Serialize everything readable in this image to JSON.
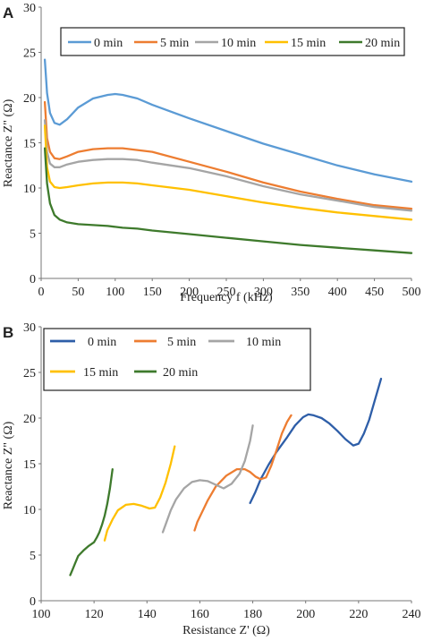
{
  "chart_data": [
    {
      "panel_label": "A",
      "type": "line",
      "xlabel": "Frequency f (kHz)",
      "ylabel": "Reactance Z\" (Ω)",
      "xlim": [
        0,
        500
      ],
      "ylim": [
        0,
        30
      ],
      "xticks": [
        0,
        50,
        100,
        150,
        200,
        250,
        300,
        350,
        400,
        450,
        500
      ],
      "yticks": [
        0,
        5,
        10,
        15,
        20,
        25,
        30
      ],
      "grid": false,
      "legend_position": "top",
      "series": [
        {
          "name": "0 min",
          "color": "#5b9bd5",
          "x": [
            5,
            8,
            12,
            18,
            25,
            35,
            50,
            70,
            90,
            100,
            110,
            130,
            150,
            200,
            250,
            300,
            350,
            400,
            450,
            500
          ],
          "y": [
            24.2,
            20.5,
            18.3,
            17.2,
            17.0,
            17.6,
            18.9,
            19.9,
            20.3,
            20.4,
            20.3,
            19.9,
            19.2,
            17.7,
            16.3,
            14.9,
            13.7,
            12.5,
            11.5,
            10.7
          ]
        },
        {
          "name": "5 min",
          "color": "#ed7d31",
          "x": [
            5,
            8,
            12,
            18,
            25,
            35,
            50,
            70,
            90,
            100,
            110,
            130,
            150,
            200,
            250,
            300,
            350,
            400,
            450,
            500
          ],
          "y": [
            19.5,
            15.5,
            14.0,
            13.3,
            13.2,
            13.5,
            14.0,
            14.3,
            14.4,
            14.4,
            14.4,
            14.2,
            14.0,
            12.9,
            11.8,
            10.6,
            9.6,
            8.8,
            8.1,
            7.7
          ]
        },
        {
          "name": "10 min",
          "color": "#a5a5a5",
          "x": [
            5,
            8,
            12,
            18,
            25,
            35,
            50,
            70,
            90,
            100,
            110,
            130,
            150,
            200,
            250,
            300,
            350,
            400,
            450,
            500
          ],
          "y": [
            17.5,
            14.0,
            12.7,
            12.3,
            12.3,
            12.6,
            12.9,
            13.1,
            13.2,
            13.2,
            13.2,
            13.1,
            12.8,
            12.2,
            11.3,
            10.2,
            9.3,
            8.6,
            7.9,
            7.5
          ]
        },
        {
          "name": "15 min",
          "color": "#ffc000",
          "x": [
            5,
            8,
            12,
            18,
            25,
            35,
            50,
            70,
            90,
            100,
            110,
            130,
            150,
            200,
            250,
            300,
            350,
            400,
            450,
            500
          ],
          "y": [
            16.9,
            12.3,
            10.7,
            10.1,
            10.0,
            10.1,
            10.3,
            10.5,
            10.6,
            10.6,
            10.6,
            10.5,
            10.3,
            9.8,
            9.1,
            8.4,
            7.8,
            7.3,
            6.9,
            6.5
          ]
        },
        {
          "name": "20 min",
          "color": "#3e7a2c",
          "x": [
            5,
            8,
            12,
            18,
            25,
            35,
            50,
            70,
            90,
            100,
            110,
            130,
            150,
            200,
            250,
            300,
            350,
            400,
            450,
            500
          ],
          "y": [
            14.4,
            10.5,
            8.3,
            7.0,
            6.5,
            6.2,
            6.0,
            5.9,
            5.8,
            5.7,
            5.6,
            5.5,
            5.3,
            4.9,
            4.5,
            4.1,
            3.7,
            3.4,
            3.1,
            2.8
          ]
        }
      ]
    },
    {
      "panel_label": "B",
      "type": "line",
      "xlabel": "Resistance Z' (Ω)",
      "ylabel": "Reactance Z\" (Ω)",
      "xlim": [
        100,
        240
      ],
      "ylim": [
        0,
        30
      ],
      "xticks": [
        100,
        120,
        140,
        160,
        180,
        200,
        220,
        240
      ],
      "yticks": [
        0,
        5,
        10,
        15,
        20,
        25,
        30
      ],
      "grid": false,
      "legend_position": "top-left",
      "series": [
        {
          "name": "0 min",
          "color": "#2e5ea8",
          "x": [
            179,
            181,
            183,
            186,
            189,
            193,
            196,
            199,
            201,
            203,
            206,
            209,
            212,
            215,
            218,
            220,
            222,
            224,
            226,
            228.5
          ],
          "y": [
            10.7,
            11.9,
            13.3,
            14.9,
            16.3,
            17.9,
            19.2,
            20.1,
            20.4,
            20.3,
            20.0,
            19.4,
            18.6,
            17.7,
            17.0,
            17.2,
            18.3,
            19.8,
            21.8,
            24.3
          ]
        },
        {
          "name": "5 min",
          "color": "#ed7d31",
          "x": [
            158,
            159,
            161,
            163,
            166,
            170,
            174,
            177,
            179,
            181,
            183,
            185,
            187,
            189,
            191,
            193,
            194.5
          ],
          "y": [
            7.7,
            8.6,
            9.8,
            11.0,
            12.5,
            13.7,
            14.4,
            14.4,
            14.1,
            13.6,
            13.3,
            13.5,
            14.8,
            16.5,
            18.3,
            19.6,
            20.3
          ]
        },
        {
          "name": "10 min",
          "color": "#a5a5a5",
          "x": [
            146,
            147,
            149,
            151,
            154,
            157,
            160,
            163,
            166,
            169,
            172,
            175,
            177,
            179,
            180
          ],
          "y": [
            7.5,
            8.3,
            9.9,
            11.1,
            12.3,
            13.0,
            13.2,
            13.1,
            12.7,
            12.3,
            12.8,
            13.9,
            15.3,
            17.5,
            19.2
          ]
        },
        {
          "name": "15 min",
          "color": "#ffc000",
          "x": [
            124,
            125,
            127,
            129,
            132,
            135,
            138,
            141,
            143,
            145,
            147,
            149,
            150.5
          ],
          "y": [
            6.6,
            7.7,
            8.9,
            9.9,
            10.5,
            10.6,
            10.4,
            10.1,
            10.2,
            11.3,
            12.9,
            15.0,
            16.9
          ]
        },
        {
          "name": "20 min",
          "color": "#3e7a2c",
          "x": [
            111,
            112,
            113,
            114,
            116,
            118,
            120,
            121,
            122,
            123,
            124,
            125,
            126,
            127
          ],
          "y": [
            2.8,
            3.5,
            4.2,
            4.9,
            5.5,
            6.0,
            6.4,
            6.9,
            7.5,
            8.3,
            9.3,
            10.6,
            12.3,
            14.4
          ]
        }
      ]
    }
  ]
}
